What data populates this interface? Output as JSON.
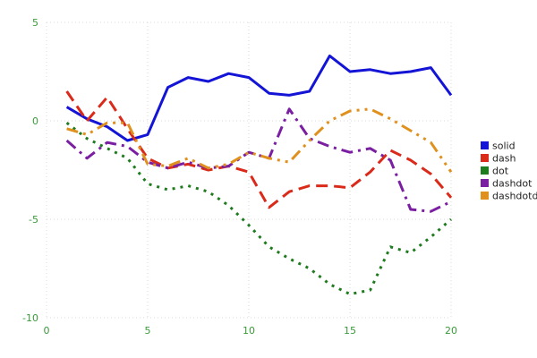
{
  "page": {
    "background_color": "#ffffff"
  },
  "chart_data": {
    "type": "line",
    "title": "",
    "xlabel": "",
    "ylabel": "",
    "xlim": [
      0,
      20
    ],
    "ylim": [
      -10,
      5
    ],
    "x_ticks": [
      0,
      5,
      10,
      15,
      20
    ],
    "y_ticks": [
      5,
      0,
      -5,
      -10
    ],
    "grid": true,
    "grid_style": "dotted",
    "grid_color": "#d9d9d9",
    "tick_label_color": "#3a9a3a",
    "legend_position": "right",
    "legend_text_color": "#222222",
    "line_width": 3,
    "x": [
      1,
      2,
      3,
      4,
      5,
      6,
      7,
      8,
      9,
      10,
      11,
      12,
      13,
      14,
      15,
      16,
      17,
      18,
      19,
      20
    ],
    "series": [
      {
        "name": "solid",
        "color": "#1414d6",
        "dash_style": "solid",
        "dash_pattern": "",
        "values": [
          0.7,
          0.1,
          -0.3,
          -1.0,
          -0.7,
          1.7,
          2.2,
          2.0,
          2.4,
          2.2,
          1.4,
          1.3,
          1.5,
          3.3,
          2.5,
          2.6,
          2.4,
          2.5,
          2.7,
          1.3
        ]
      },
      {
        "name": "dash",
        "color": "#d92a1a",
        "dash_style": "dash",
        "dash_pattern": "13 7",
        "values": [
          1.5,
          0.0,
          1.2,
          -0.4,
          -1.9,
          -2.4,
          -2.2,
          -2.5,
          -2.3,
          -2.6,
          -4.4,
          -3.6,
          -3.3,
          -3.3,
          -3.4,
          -2.6,
          -1.5,
          -2.0,
          -2.7,
          -3.9
        ]
      },
      {
        "name": "dot",
        "color": "#1e7b1e",
        "dash_style": "dot",
        "dash_pattern": "3 6",
        "values": [
          -0.1,
          -0.9,
          -1.4,
          -1.9,
          -3.2,
          -3.5,
          -3.3,
          -3.6,
          -4.3,
          -5.3,
          -6.4,
          -7.0,
          -7.5,
          -8.3,
          -8.8,
          -8.6,
          -6.4,
          -6.7,
          -5.9,
          -5.0
        ]
      },
      {
        "name": "dashdot",
        "color": "#7b1fa2",
        "dash_style": "dashdot",
        "dash_pattern": "13 6 3 6",
        "values": [
          -1.0,
          -1.9,
          -1.1,
          -1.3,
          -2.1,
          -2.4,
          -2.1,
          -2.4,
          -2.3,
          -1.6,
          -1.9,
          0.6,
          -0.9,
          -1.3,
          -1.6,
          -1.4,
          -2.0,
          -4.5,
          -4.6,
          -4.1
        ]
      },
      {
        "name": "dashdotdot",
        "color": "#e0901c",
        "dash_style": "dashdotdot",
        "dash_pattern": "13 6 3 6 3 6",
        "values": [
          -0.4,
          -0.7,
          -0.1,
          -0.1,
          -2.2,
          -2.3,
          -1.9,
          -2.4,
          -2.2,
          -1.6,
          -1.9,
          -2.1,
          -1.0,
          0.0,
          0.5,
          0.6,
          0.1,
          -0.5,
          -1.1,
          -2.6
        ]
      }
    ]
  }
}
